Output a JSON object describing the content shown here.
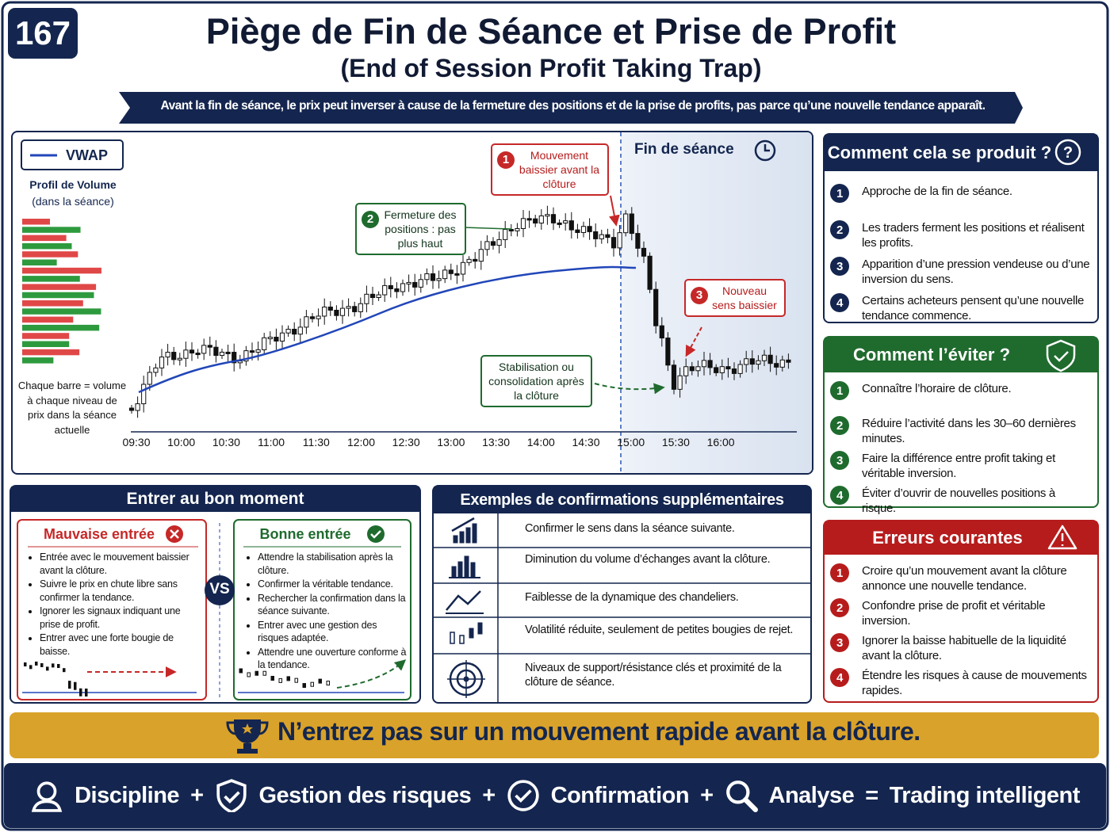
{
  "badge": "167",
  "header": {
    "title": "Piège de Fin de Séance et Prise de Profit",
    "subtitle": "(End of Session Profit Taking Trap)",
    "banner": "Avant la fin de séance, le prix peut inverser à cause de la fermeture des positions et de la prise de profits, pas parce qu’une nouvelle tendance apparaît."
  },
  "chart": {
    "legend": "VWAP",
    "profile_title": "Profil de Volume",
    "profile_subtitle": "(dans la séance)",
    "profile_note": "Chaque barre = volume à chaque niveau de prix dans la séance actuelle",
    "session_end": "Fin de séance",
    "times": [
      "09:30",
      "10:00",
      "10:30",
      "11:00",
      "11:30",
      "12:00",
      "12:30",
      "13:00",
      "13:30",
      "14:00",
      "14:30",
      "15:00",
      "15:30",
      "16:00"
    ],
    "callouts": [
      {
        "number": 1,
        "text": "Mouvement baissier avant la clôture"
      },
      {
        "number": 2,
        "text": "Fermeture des positions : pas plus haut"
      },
      {
        "number": 3,
        "text": "Nouveau sens baissier"
      }
    ],
    "stabilisation": "Stabilisation ou consolidation après la clôture"
  },
  "how": {
    "title": "Comment cela se produit ?",
    "items": [
      {
        "number": 1,
        "text": "Approche de la fin de séance."
      },
      {
        "number": 2,
        "text": "Les traders ferment les positions et réalisent les profits."
      },
      {
        "number": 3,
        "text": "Apparition d’une pression vendeuse ou d’une inversion du sens."
      },
      {
        "number": 4,
        "text": "Certains acheteurs pensent qu’une nouvelle tendance commence."
      }
    ]
  },
  "avoid": {
    "title": "Comment l’éviter ?",
    "items": [
      {
        "number": 1,
        "text": "Connaître l’horaire de clôture."
      },
      {
        "number": 2,
        "text": "Réduire l’activité dans les 30–60 dernières minutes."
      },
      {
        "number": 3,
        "text": "Faire la différence entre profit taking et véritable inversion."
      },
      {
        "number": 4,
        "text": "Éviter d’ouvrir de nouvelles positions à risque."
      }
    ]
  },
  "errors": {
    "title": "Erreurs courantes",
    "items": [
      {
        "number": 1,
        "text": "Croire qu’un mouvement avant la clôture annonce une nouvelle tendance."
      },
      {
        "number": 2,
        "text": "Confondre prise de profit et véritable inversion."
      },
      {
        "number": 3,
        "text": "Ignorer la baisse habituelle de la liquidité avant la clôture."
      },
      {
        "number": 4,
        "text": "Étendre les risques à cause de mouvements rapides."
      }
    ]
  },
  "entry": {
    "title": "Entrer au bon moment",
    "vs": "VS",
    "bad": {
      "title": "Mauvaise entrée",
      "items": [
        "Entrée avec le mouvement baissier avant la clôture.",
        "Suivre le prix en chute libre sans confirmer la tendance.",
        "Ignorer les signaux indiquant une prise de profit.",
        "Entrer avec une forte bougie de baisse."
      ]
    },
    "good": {
      "title": "Bonne entrée",
      "items": [
        "Attendre la stabilisation après la clôture.",
        "Confirmer la véritable tendance.",
        "Rechercher la confirmation dans la séance suivante.",
        "Entrer avec une gestion des risques adaptée.",
        "Attendre une ouverture conforme à la tendance."
      ]
    }
  },
  "confirmations": {
    "title": "Exemples de confirmations supplémentaires",
    "items": [
      "Confirmer le sens dans la séance suivante.",
      "Diminution du volume d’échanges avant la clôture.",
      "Faiblesse de la dynamique des chandeliers.",
      "Volatilité réduite, seulement de petites bougies de rejet.",
      "Niveaux de support/résistance clés et proximité de la clôture de séance."
    ]
  },
  "tip": "N’entrez pas sur un mouvement rapide avant la clôture.",
  "footer": {
    "terms": [
      "Discipline",
      "Gestion des risques",
      "Confirmation",
      "Analyse"
    ],
    "plus": "+",
    "equals": "=",
    "result": "Trading intelligent"
  }
}
